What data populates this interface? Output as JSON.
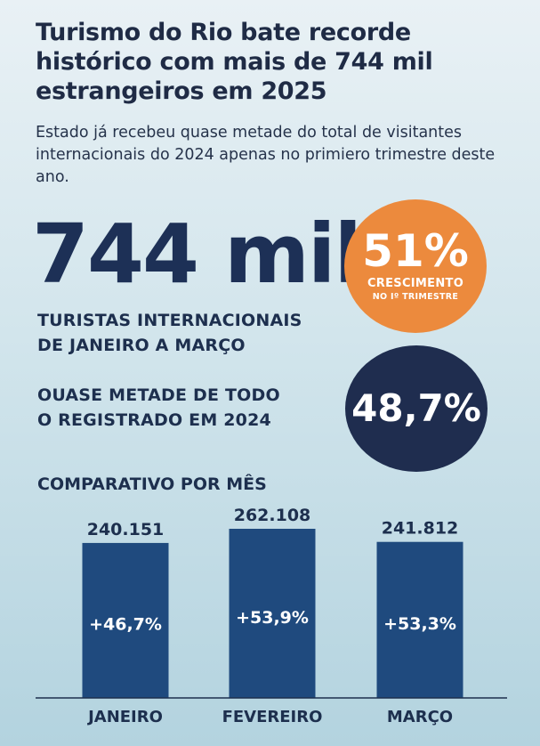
{
  "headline": "Turismo do Rio bate recorde histórico com mais de 744 mil estrangeiros em 2025",
  "subtitle": "Estado já recebeu quase metade do total de visitantes internacionais do 2024 apenas no primiero trimestre deste ano.",
  "main_stat": {
    "value": "744 mil",
    "label_line1": "TURISTAS INTERNACIONAIS",
    "label_line2": "DE JANEIRO A MARÇO"
  },
  "growth_badge": {
    "value": "51%",
    "label_line1": "CRESCIMENTO",
    "label_line2": "NO Iº TRIMESTRE"
  },
  "share_stat": {
    "label_line1": "OUASE METADE DE TODO",
    "label_line2": "O REGISTRADO EM 2024",
    "value": "48,7%"
  },
  "colors": {
    "navy": "#1f2d4f",
    "bar": "#1f4a7e",
    "orange": "#ec8a3d",
    "text_dark": "#1d2f4e"
  },
  "chart_data": {
    "type": "bar",
    "title": "COMPARATIVO POR MÊS",
    "categories": [
      "JANEIRO",
      "FEVEREIRO",
      "MARÇO"
    ],
    "values": [
      240151,
      262108,
      241812
    ],
    "value_labels": [
      "240.151",
      "262.108",
      "241.812"
    ],
    "growth_labels": [
      "+46,7%",
      "+53,9%",
      "+53,3%"
    ],
    "xlabel": "",
    "ylabel": "",
    "grid": false,
    "legend": "none"
  }
}
